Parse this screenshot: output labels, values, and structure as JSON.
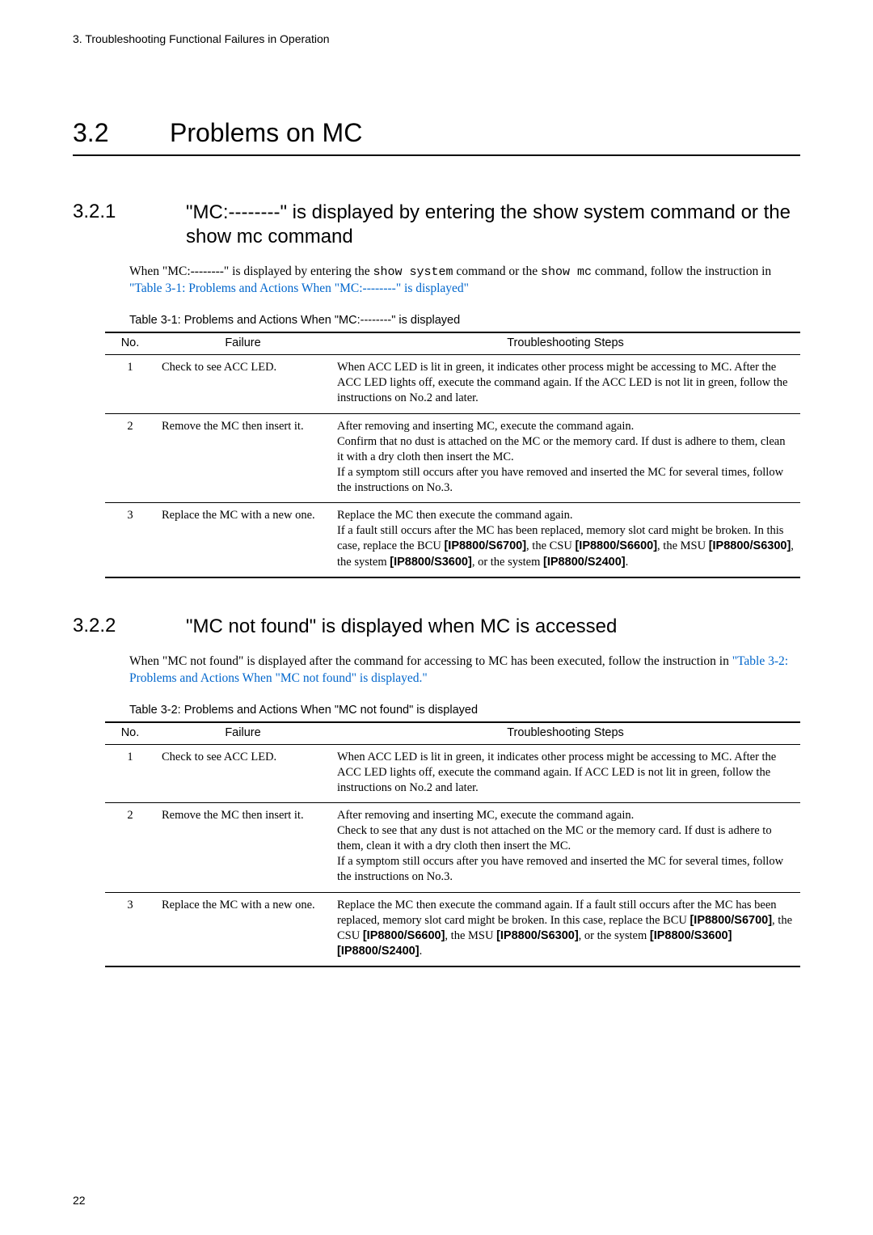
{
  "header": "3.  Troubleshooting Functional Failures in Operation",
  "chapter": {
    "number": "3.2",
    "title": "Problems on MC"
  },
  "section1": {
    "number": "3.2.1",
    "title": "\"MC:--------\" is displayed by entering the show system command or the show mc command",
    "body_prefix": "When \"MC:--------\" is displayed by entering the ",
    "mono1": "show system",
    "body_mid1": " command or the ",
    "mono2": "show mc",
    "body_mid2": " command, follow the instruction in ",
    "body_link": "\"Table 3-1: Problems and Actions When \"MC:--------\" is displayed\""
  },
  "table1": {
    "caption": "Table 3-1: Problems and Actions When \"MC:--------\" is displayed",
    "headers": {
      "no": "No.",
      "failure": "Failure",
      "steps": "Troubleshooting Steps"
    },
    "rows": [
      {
        "no": "1",
        "failure": "Check to see ACC LED.",
        "steps": "When ACC LED is lit in green, it indicates other process might be accessing to MC. After the ACC LED lights off, execute the command again. If the ACC LED is not lit in green, follow the instructions on No.2 and later."
      },
      {
        "no": "2",
        "failure": "Remove the MC then insert it.",
        "steps": "After removing and inserting MC, execute the command again.\nConfirm that no dust is attached on the MC or the memory card. If dust is adhere to them, clean it with a dry cloth then insert the MC.\nIf a symptom still occurs after you have removed and inserted the MC for several times, follow the instructions on No.3."
      },
      {
        "no": "3",
        "failure": "Replace the MC with a new one.",
        "steps_parts": [
          {
            "t": "Replace the MC then execute the command again.\nIf a fault still occurs after the MC has been replaced, memory slot card might be broken. In this case, replace the BCU "
          },
          {
            "b": "[IP8800/S6700]"
          },
          {
            "t": ", the CSU "
          },
          {
            "b": "[IP8800/S6600]"
          },
          {
            "t": ", the MSU "
          },
          {
            "b": "[IP8800/S6300]"
          },
          {
            "t": ", the system "
          },
          {
            "b": "[IP8800/S3600]"
          },
          {
            "t": ", or the system "
          },
          {
            "b": "[IP8800/S2400]"
          },
          {
            "t": "."
          }
        ]
      }
    ]
  },
  "section2": {
    "number": "3.2.2",
    "title": "\"MC not found\" is displayed when MC is accessed",
    "body_prefix": "When \"MC not found\" is displayed after the command for accessing to MC has been executed, follow the instruction in ",
    "body_link": "\"Table 3-2: Problems and Actions When \"MC not found\" is displayed.\""
  },
  "table2": {
    "caption": "Table 3-2: Problems and Actions When \"MC not found\" is displayed",
    "headers": {
      "no": "No.",
      "failure": "Failure",
      "steps": "Troubleshooting Steps"
    },
    "rows": [
      {
        "no": "1",
        "failure": "Check to see ACC LED.",
        "steps": "When ACC LED is lit in green, it indicates other process might be accessing to MC. After the ACC LED lights off, execute the command again. If ACC LED is not lit in green, follow the instructions on No.2 and later."
      },
      {
        "no": "2",
        "failure": "Remove the MC then insert it.",
        "steps": "After removing and inserting MC, execute the command again.\nCheck to see that any dust is not attached on the MC or the memory card. If dust is adhere to them, clean it with a dry cloth then insert the MC.\nIf a symptom still occurs after you have removed and inserted the MC for several times, follow the instructions on No.3."
      },
      {
        "no": "3",
        "failure": "Replace the MC with a new one.",
        "steps_parts": [
          {
            "t": "Replace the MC then execute the command again. If a fault still occurs after the MC has been replaced, memory slot card might be broken. In this case, replace the BCU "
          },
          {
            "b": "[IP8800/S6700]"
          },
          {
            "t": ", the CSU "
          },
          {
            "b": "[IP8800/S6600]"
          },
          {
            "t": ", the MSU "
          },
          {
            "b": "[IP8800/S6300]"
          },
          {
            "t": ", or the system "
          },
          {
            "b": "[IP8800/S3600] [IP8800/S2400]"
          },
          {
            "t": "."
          }
        ]
      }
    ]
  },
  "page_number": "22"
}
